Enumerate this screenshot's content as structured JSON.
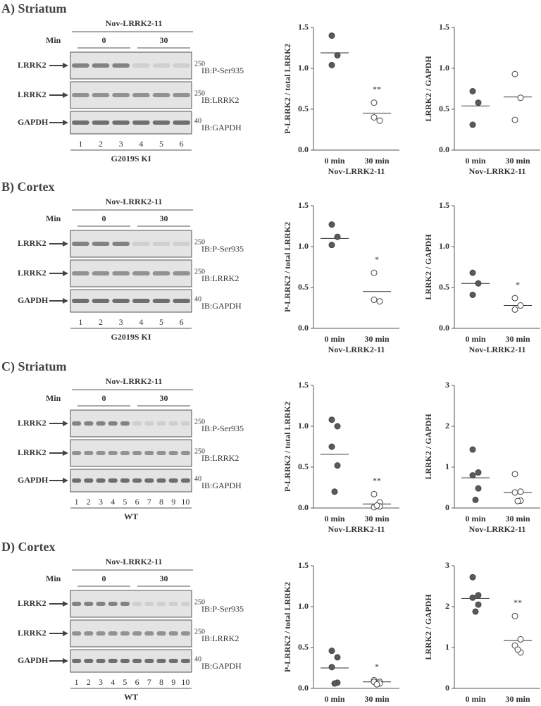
{
  "panels": [
    {
      "title": "A) Striatum",
      "blot": {
        "header": "Nov-LRRK2-11",
        "min_label": "Min",
        "groups": [
          "0",
          "30"
        ],
        "rows": [
          {
            "label": "LRRK2",
            "marker": "250",
            "ib": "IB:P-Ser935"
          },
          {
            "label": "LRRK2",
            "marker": "250",
            "ib": "IB:LRRK2"
          },
          {
            "label": "GAPDH",
            "marker": "40",
            "ib": "IB:GAPDH"
          }
        ],
        "lanes": [
          1,
          2,
          3,
          4,
          5,
          6
        ],
        "genotype": "G2019S KI"
      }
    },
    {
      "title": "B) Cortex",
      "blot": {
        "header": "Nov-LRRK2-11",
        "min_label": "Min",
        "groups": [
          "0",
          "30"
        ],
        "rows": [
          {
            "label": "LRRK2",
            "marker": "250",
            "ib": "IB:P-Ser935"
          },
          {
            "label": "LRRK2",
            "marker": "250",
            "ib": "IB:LRRK2"
          },
          {
            "label": "GAPDH",
            "marker": "40",
            "ib": "IB:GAPDH"
          }
        ],
        "lanes": [
          1,
          2,
          3,
          4,
          5,
          6
        ],
        "genotype": "G2019S KI"
      }
    },
    {
      "title": "C) Striatum",
      "blot": {
        "header": "Nov-LRRK2-11",
        "min_label": "Min",
        "groups": [
          "0",
          "30"
        ],
        "rows": [
          {
            "label": "LRRK2",
            "marker": "250",
            "ib": "IB:P-Ser935"
          },
          {
            "label": "LRRK2",
            "marker": "250",
            "ib": "IB:LRRK2"
          },
          {
            "label": "GAPDH",
            "marker": "40",
            "ib": "IB:GAPDH"
          }
        ],
        "lanes": [
          1,
          2,
          3,
          4,
          5,
          6,
          7,
          8,
          9,
          10
        ],
        "genotype": "WT"
      }
    },
    {
      "title": "D) Cortex",
      "blot": {
        "header": "Nov-LRRK2-11",
        "min_label": "Min",
        "groups": [
          "0",
          "30"
        ],
        "rows": [
          {
            "label": "LRRK2",
            "marker": "250",
            "ib": "IB:P-Ser935"
          },
          {
            "label": "LRRK2",
            "marker": "250",
            "ib": "IB:LRRK2"
          },
          {
            "label": "GAPDH",
            "marker": "40",
            "ib": "IB:GAPDH"
          }
        ],
        "lanes": [
          1,
          2,
          3,
          4,
          5,
          6,
          7,
          8,
          9,
          10
        ],
        "genotype": "WT"
      }
    }
  ],
  "chart_data": [
    {
      "type": "strip",
      "ylabel": "P-LRRK2 / total LRRK2",
      "xlabel": "Nov-LRRK2-11",
      "categories": [
        "0 min",
        "30 min"
      ],
      "values": [
        [
          1.4,
          1.16,
          1.04
        ],
        [
          0.58,
          0.36,
          0.4
        ]
      ],
      "means": [
        1.19,
        0.45
      ],
      "significance": "**",
      "marker_fill": [
        "#5a5a5a",
        "#ffffff"
      ],
      "ylim": [
        0,
        1.5
      ],
      "yticks": [
        {
          "value": 0,
          "label": "0.0"
        },
        {
          "value": 0.5,
          "label": "0.5"
        },
        {
          "value": 1,
          "label": "1.0"
        },
        {
          "value": 1.5,
          "label": "1.5"
        }
      ]
    },
    {
      "type": "strip",
      "ylabel": "LRRK2 / GAPDH",
      "xlabel": "Nov-LRRK2-11",
      "categories": [
        "0 min",
        "30 min"
      ],
      "values": [
        [
          0.72,
          0.58,
          0.31
        ],
        [
          0.93,
          0.64,
          0.37
        ]
      ],
      "means": [
        0.54,
        0.65
      ],
      "marker_fill": [
        "#5a5a5a",
        "#ffffff"
      ],
      "ylim": [
        0,
        1.5
      ],
      "yticks": [
        {
          "value": 0,
          "label": "0.0"
        },
        {
          "value": 0.5,
          "label": "0.5"
        },
        {
          "value": 1,
          "label": "1.0"
        },
        {
          "value": 1.5,
          "label": "1.5"
        }
      ]
    },
    {
      "type": "strip",
      "ylabel": "P-LRRK2 / total LRRK2",
      "xlabel": "Nov-LRRK2-11",
      "categories": [
        "0 min",
        "30 min"
      ],
      "values": [
        [
          1.27,
          1.12,
          1.02
        ],
        [
          0.68,
          0.33,
          0.35
        ]
      ],
      "means": [
        1.1,
        0.45
      ],
      "significance": "*",
      "marker_fill": [
        "#5a5a5a",
        "#ffffff"
      ],
      "ylim": [
        0,
        1.5
      ],
      "yticks": [
        {
          "value": 0,
          "label": "0.0"
        },
        {
          "value": 0.5,
          "label": "0.5"
        },
        {
          "value": 1,
          "label": "1.0"
        },
        {
          "value": 1.5,
          "label": "1.5"
        }
      ]
    },
    {
      "type": "strip",
      "ylabel": "LRRK2 / GAPDH",
      "xlabel": "Nov-LRRK2-11",
      "categories": [
        "0 min",
        "30 min"
      ],
      "values": [
        [
          0.68,
          0.55,
          0.41
        ],
        [
          0.37,
          0.28,
          0.23
        ]
      ],
      "means": [
        0.55,
        0.28
      ],
      "significance": "*",
      "marker_fill": [
        "#5a5a5a",
        "#ffffff"
      ],
      "ylim": [
        0,
        1.5
      ],
      "yticks": [
        {
          "value": 0,
          "label": "0.0"
        },
        {
          "value": 0.5,
          "label": "0.5"
        },
        {
          "value": 1,
          "label": "1.0"
        },
        {
          "value": 1.5,
          "label": "1.5"
        }
      ]
    },
    {
      "type": "strip",
      "ylabel": "P-LRRK2 / total LRRK2",
      "xlabel": "Nov-LRRK2-11",
      "categories": [
        "0 min",
        "30 min"
      ],
      "values": [
        [
          1.08,
          1.0,
          0.75,
          0.52,
          0.2
        ],
        [
          0.17,
          0.07,
          0.01,
          0.02,
          0.03
        ]
      ],
      "means": [
        0.66,
        0.05
      ],
      "significance": "**",
      "marker_fill": [
        "#5a5a5a",
        "#ffffff"
      ],
      "ylim": [
        0,
        1.5
      ],
      "yticks": [
        {
          "value": 0,
          "label": "0.0"
        },
        {
          "value": 0.5,
          "label": "0.5"
        },
        {
          "value": 1,
          "label": "1.0"
        },
        {
          "value": 1.5,
          "label": "1.5"
        }
      ]
    },
    {
      "type": "strip",
      "ylabel": "LRRK2 / GAPDH",
      "xlabel": "Nov-LRRK2-11",
      "categories": [
        "0 min",
        "30 min"
      ],
      "values": [
        [
          1.43,
          0.87,
          0.8,
          0.48,
          0.2
        ],
        [
          0.83,
          0.4,
          0.38,
          0.18,
          0.17
        ]
      ],
      "means": [
        0.74,
        0.38
      ],
      "marker_fill": [
        "#5a5a5a",
        "#ffffff"
      ],
      "ylim": [
        0,
        3
      ],
      "yticks": [
        0,
        1,
        2,
        3
      ]
    },
    {
      "type": "strip",
      "ylabel": "P-LRRK2 / total LRRK2",
      "xlabel": "Nov-LRRK2-11",
      "categories": [
        "0 min",
        "30 min"
      ],
      "values": [
        [
          0.46,
          0.38,
          0.26,
          0.07,
          0.06
        ],
        [
          0.1,
          0.08,
          0.08,
          0.06,
          0.05
        ]
      ],
      "means": [
        0.25,
        0.08
      ],
      "significance": "*",
      "marker_fill": [
        "#5a5a5a",
        "#ffffff"
      ],
      "ylim": [
        0,
        1.5
      ],
      "yticks": [
        {
          "value": 0,
          "label": "0.0"
        },
        {
          "value": 0.5,
          "label": "0.5"
        },
        {
          "value": 1,
          "label": "1.0"
        },
        {
          "value": 1.5,
          "label": "1.5"
        }
      ]
    },
    {
      "type": "strip",
      "ylabel": "LRRK2 / GAPDH",
      "xlabel": "Nov-LRRK2-11",
      "categories": [
        "0 min",
        "30 min"
      ],
      "values": [
        [
          2.72,
          2.28,
          2.22,
          2.05,
          1.88
        ],
        [
          1.77,
          1.2,
          1.05,
          0.88,
          0.95
        ]
      ],
      "means": [
        2.2,
        1.17
      ],
      "significance": "**",
      "marker_fill": [
        "#5a5a5a",
        "#ffffff"
      ],
      "ylim": [
        0,
        3
      ],
      "yticks": [
        0,
        1,
        2,
        3
      ]
    }
  ]
}
